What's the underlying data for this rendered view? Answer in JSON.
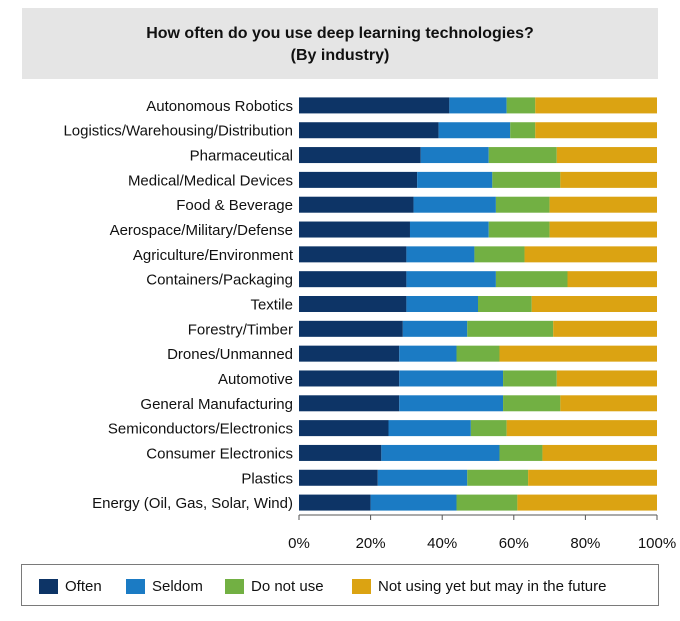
{
  "chart_data": {
    "type": "bar",
    "orientation": "horizontal",
    "stacked": true,
    "title": "How often do you use deep learning technologies?",
    "subtitle": "(By industry)",
    "categories": [
      "Autonomous Robotics",
      "Logistics/Warehousing/Distribution",
      "Pharmaceutical",
      "Medical/Medical Devices",
      "Food & Beverage",
      "Aerospace/Military/Defense",
      "Agriculture/Environment",
      "Containers/Packaging",
      "Textile",
      "Forestry/Timber",
      "Drones/Unmanned",
      "Automotive",
      "General Manufacturing",
      "Semiconductors/Electronics",
      "Consumer Electronics",
      "Plastics",
      "Energy (Oil, Gas, Solar, Wind)"
    ],
    "series": [
      {
        "name": "Often",
        "color": "#0d3466",
        "values": [
          42,
          39,
          34,
          33,
          32,
          31,
          30,
          30,
          30,
          29,
          28,
          28,
          28,
          25,
          23,
          22,
          20
        ]
      },
      {
        "name": "Seldom",
        "color": "#1b7bc4",
        "values": [
          16,
          20,
          19,
          21,
          23,
          22,
          19,
          25,
          20,
          18,
          16,
          29,
          29,
          23,
          33,
          25,
          24
        ]
      },
      {
        "name": "Do not use",
        "color": "#72b043",
        "values": [
          8,
          7,
          19,
          19,
          15,
          17,
          14,
          20,
          15,
          24,
          12,
          15,
          16,
          10,
          12,
          17,
          17
        ]
      },
      {
        "name": "Not using yet but may in the future",
        "color": "#dba312",
        "values": [
          34,
          34,
          28,
          27,
          30,
          30,
          37,
          25,
          35,
          29,
          44,
          28,
          27,
          42,
          32,
          36,
          39
        ]
      }
    ],
    "xlim": [
      0,
      100
    ],
    "x_ticks": [
      "0%",
      "20%",
      "40%",
      "60%",
      "80%",
      "100%"
    ],
    "grid": false,
    "legend_position": "bottom"
  }
}
